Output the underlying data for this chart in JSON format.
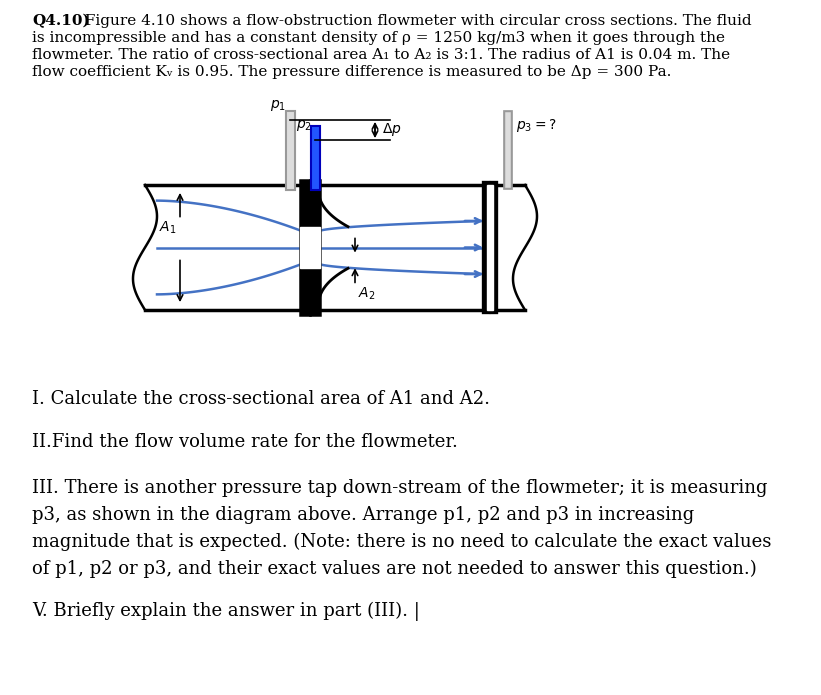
{
  "bg_color": "#ffffff",
  "flow_line_color": "#4472c4",
  "header_bold": "Q4.10)",
  "header_rest": " Figure 4.10 shows a flow-obstruction flowmeter with circular cross sections. The fluid",
  "header_line2": "is incompressible and has a constant density of ρ = 1250 kg/m3 when it goes through the",
  "header_line3": "flowmeter. The ratio of cross-sectional area A₁ to A₂ is 3:1. The radius of A1 is 0.04 m. The",
  "header_line4": "flow coefficient Kᵥ is 0.95. The pressure difference is measured to be Δp = 300 Pa.",
  "q1": "I. Calculate the cross-sectional area of A1 and A2.",
  "q2": "II.Find the flow volume rate for the flowmeter.",
  "q3a": "III. There is another pressure tap down-stream of the flowmeter; it is measuring",
  "q3b": "p3, as shown in the diagram above. Arrange p1, p2 and p3 in increasing",
  "q3c": "magnitude that is expected. (Note: there is no need to calculate the exact values",
  "q3d": "of p1, p2 or p3, and their exact values are not needed to answer this question.)",
  "q5": "V. Briefly explain the answer in part (III).",
  "text_header_fontsize": 11.0,
  "text_question_fontsize": 13.0
}
